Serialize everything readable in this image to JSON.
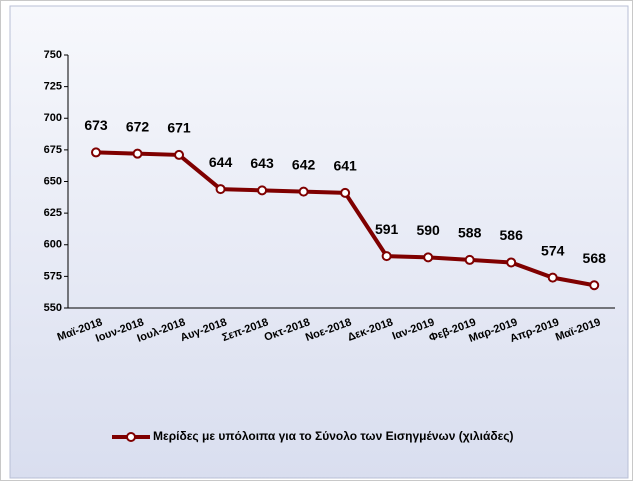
{
  "chart_data": {
    "type": "line",
    "categories": [
      "Μαϊ-2018",
      "Ιουν-2018",
      "Ιουλ-2018",
      "Αυγ-2018",
      "Σεπ-2018",
      "Οκτ-2018",
      "Νοε-2018",
      "Δεκ-2018",
      "Ιαν-2019",
      "Φεβ-2019",
      "Μαρ-2019",
      "Απρ-2019",
      "Μαϊ-2019"
    ],
    "series": [
      {
        "name": "Μερίδες με υπόλοιπα για το Σύνολο των Εισηγμένων (χιλιάδες)",
        "color": "#7f0000",
        "values": [
          673,
          672,
          671,
          644,
          643,
          642,
          641,
          591,
          590,
          588,
          586,
          574,
          568
        ]
      }
    ],
    "ylim": [
      550,
      750
    ],
    "yticks": [
      550,
      575,
      600,
      625,
      650,
      675,
      700,
      725,
      750
    ],
    "legend": "bottom"
  }
}
